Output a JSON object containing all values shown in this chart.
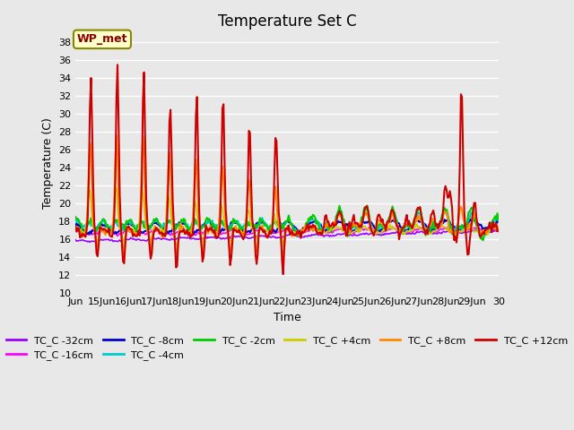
{
  "title": "Temperature Set C",
  "xlabel": "Time",
  "ylabel": "Temperature (C)",
  "ylim": [
    10,
    39
  ],
  "yticks": [
    10,
    12,
    14,
    16,
    18,
    20,
    22,
    24,
    26,
    28,
    30,
    32,
    34,
    36,
    38
  ],
  "x_start": 14.0,
  "x_end": 30.0,
  "xtick_labels": [
    "Jun",
    "15Jun",
    "16Jun",
    "17Jun",
    "18Jun",
    "19Jun",
    "20Jun",
    "21Jun",
    "22Jun",
    "23Jun",
    "24Jun",
    "25Jun",
    "26Jun",
    "27Jun",
    "28Jun",
    "29Jun",
    "30"
  ],
  "xtick_positions": [
    14.0,
    15.0,
    16.0,
    17.0,
    18.0,
    19.0,
    20.0,
    21.0,
    22.0,
    23.0,
    24.0,
    25.0,
    26.0,
    27.0,
    28.0,
    29.0,
    30.0
  ],
  "series_colors": {
    "TC_C -32cm": "#9900ff",
    "TC_C -16cm": "#ff00ff",
    "TC_C -8cm": "#0000cc",
    "TC_C -4cm": "#00cccc",
    "TC_C -2cm": "#00cc00",
    "TC_C +4cm": "#cccc00",
    "TC_C +8cm": "#ff8800",
    "TC_C +12cm": "#cc0000"
  },
  "wp_met_box_color": "#ffffcc",
  "wp_met_border_color": "#888800",
  "wp_met_text_color": "#880000",
  "plot_bg_color": "#e8e8e8",
  "grid_color": "#ffffff",
  "title_fontsize": 12,
  "label_fontsize": 9,
  "tick_fontsize": 8,
  "legend_fontsize": 8
}
